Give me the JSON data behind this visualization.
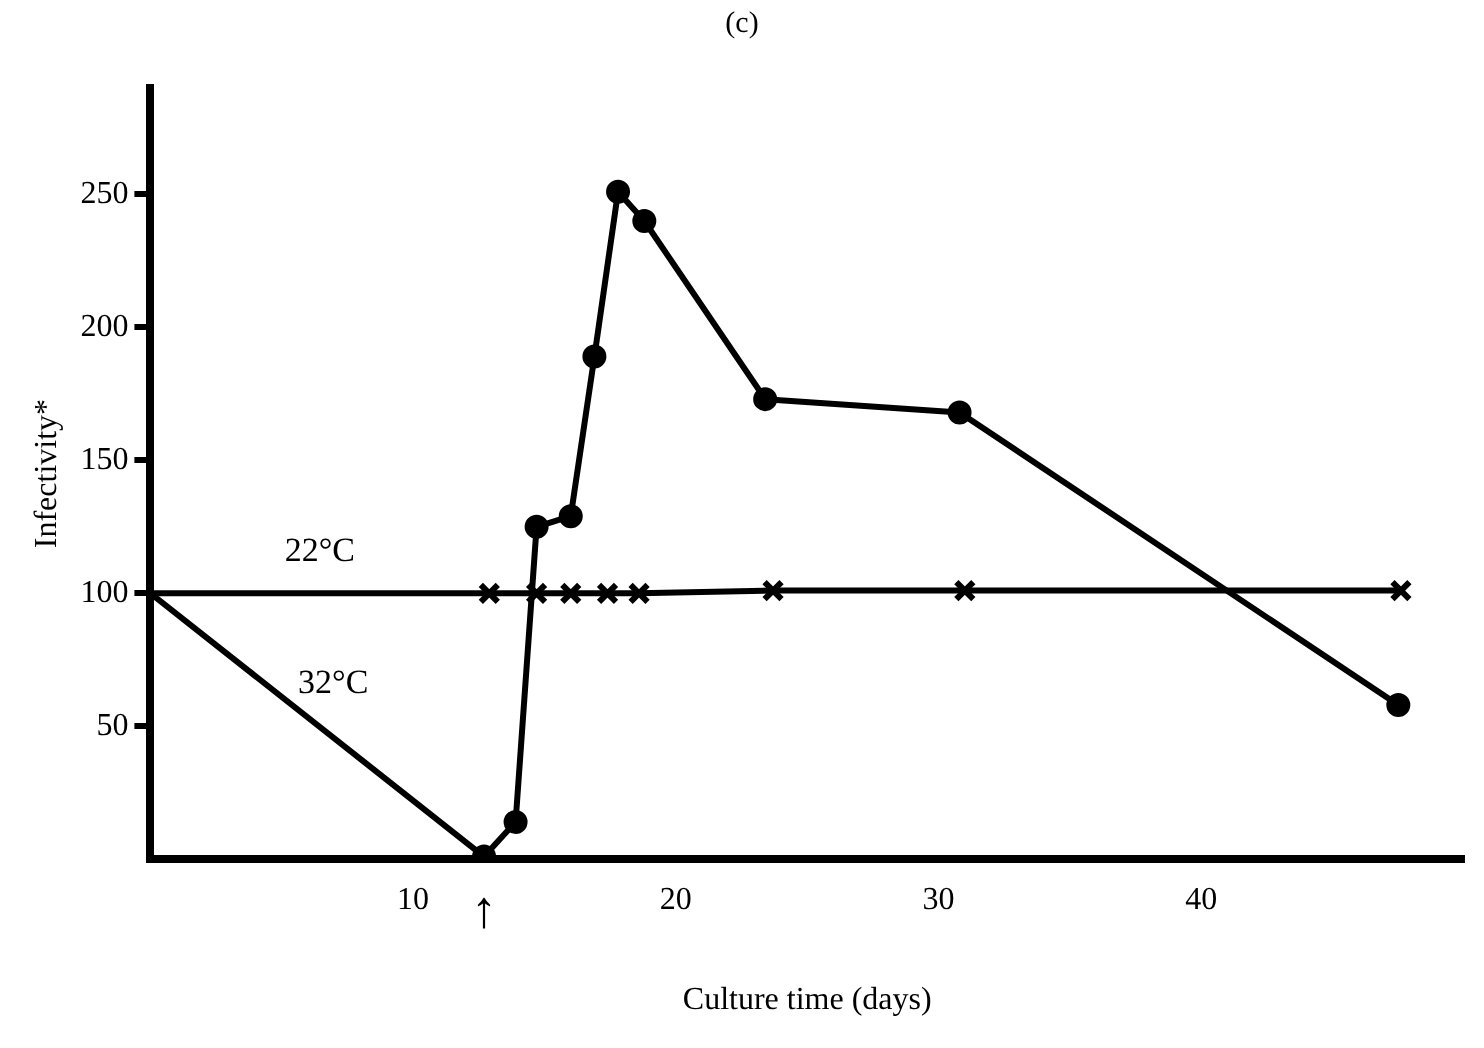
{
  "chart_data": {
    "type": "line",
    "title": "(c)",
    "xlabel": "Culture time (days)",
    "ylabel": "Infectivity*",
    "xlim": [
      0,
      50
    ],
    "xticks": [
      10,
      20,
      30,
      40
    ],
    "ylim": [
      0,
      290
    ],
    "yticks": [
      50,
      100,
      150,
      200,
      250
    ],
    "grid": false,
    "legend": false,
    "line_style": "solid",
    "series": [
      {
        "name": "22°C",
        "color": "#000000",
        "marker": "cross",
        "x": [
          0,
          12.9,
          14.7,
          16.0,
          17.4,
          18.6,
          23.7,
          31.0,
          47.6
        ],
        "values": [
          100,
          100,
          100,
          100,
          100,
          100,
          101,
          101,
          101
        ]
      },
      {
        "name": "32°C",
        "color": "#000000",
        "marker": "circle",
        "x": [
          0,
          12.7,
          13.9,
          14.7,
          16.0,
          16.9,
          17.8,
          18.8,
          23.4,
          30.8,
          47.5
        ],
        "values": [
          100,
          1,
          14,
          125,
          129,
          189,
          251,
          240,
          173,
          168,
          58
        ]
      }
    ],
    "annotations": [
      {
        "text": "↑",
        "x": 12.7,
        "y": 0
      }
    ]
  }
}
